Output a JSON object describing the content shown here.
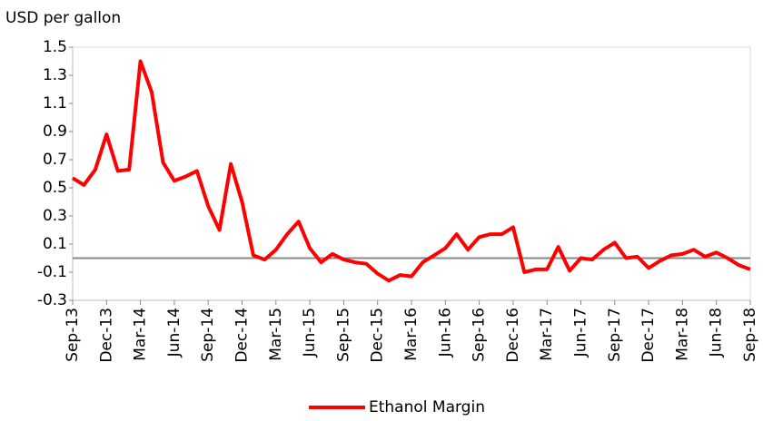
{
  "chart_data": {
    "type": "line",
    "y_label": "USD per gallon",
    "categories": [
      "Sep-13",
      null,
      null,
      "Dec-13",
      null,
      null,
      "Mar-14",
      null,
      null,
      "Jun-14",
      null,
      null,
      "Sep-14",
      null,
      null,
      "Dec-14",
      null,
      null,
      "Mar-15",
      null,
      null,
      "Jun-15",
      null,
      null,
      "Sep-15",
      null,
      null,
      "Dec-15",
      null,
      null,
      "Mar-16",
      null,
      null,
      "Jun-16",
      null,
      null,
      "Sep-16",
      null,
      null,
      "Dec-16",
      null,
      null,
      "Mar-17",
      null,
      null,
      "Jun-17",
      null,
      null,
      "Sep-17",
      null,
      null,
      "Dec-17",
      null,
      null,
      "Mar-18",
      null,
      null,
      "Jun-18",
      null,
      null,
      "Sep-18"
    ],
    "series": [
      {
        "name": "Ethanol Margin",
        "color": "#ff0000",
        "values": [
          0.57,
          0.52,
          0.63,
          0.88,
          0.62,
          0.63,
          1.4,
          1.18,
          0.68,
          0.55,
          0.58,
          0.62,
          0.37,
          0.2,
          0.67,
          0.4,
          0.02,
          -0.01,
          0.06,
          0.17,
          0.26,
          0.07,
          -0.03,
          0.03,
          -0.01,
          -0.03,
          -0.04,
          -0.11,
          -0.16,
          -0.12,
          -0.13,
          -0.03,
          0.02,
          0.07,
          0.17,
          0.06,
          0.15,
          0.17,
          0.17,
          0.22,
          -0.1,
          -0.08,
          -0.08,
          0.08,
          -0.09,
          0.0,
          -0.01,
          0.06,
          0.11,
          0.0,
          0.01,
          -0.07,
          -0.02,
          0.02,
          0.03,
          0.06,
          0.01,
          0.04,
          0.0,
          -0.05,
          -0.08
        ]
      }
    ],
    "ylim": [
      -0.3,
      1.5
    ],
    "yticks": [
      1.5,
      1.3,
      1.1,
      0.9,
      0.7,
      0.5,
      0.3,
      0.1,
      -0.1,
      -0.3
    ],
    "zero_line": true,
    "legend": "bottom"
  }
}
